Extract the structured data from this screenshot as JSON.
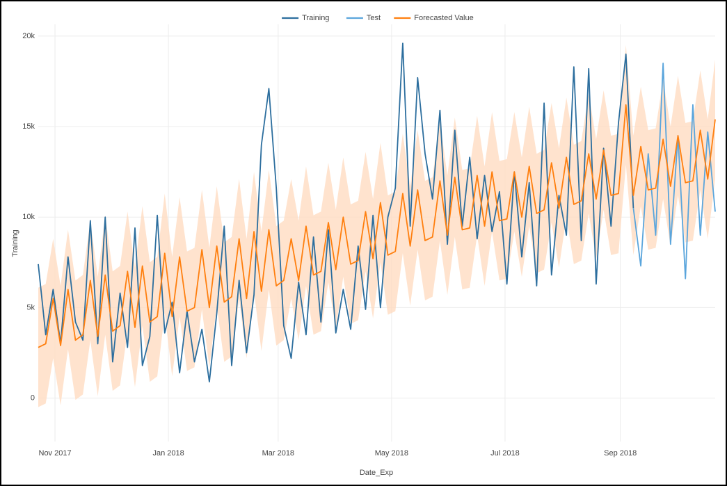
{
  "chart_data": {
    "type": "line",
    "x_label": "Date_Exp",
    "y_label": "Training",
    "x": [
      "2017-10-23",
      "2017-10-27",
      "2017-10-31",
      "2017-11-04",
      "2017-11-08",
      "2017-11-12",
      "2017-11-16",
      "2017-11-20",
      "2017-11-24",
      "2017-11-28",
      "2017-12-02",
      "2017-12-06",
      "2017-12-10",
      "2017-12-14",
      "2017-12-18",
      "2017-12-22",
      "2017-12-26",
      "2017-12-30",
      "2018-01-03",
      "2018-01-07",
      "2018-01-11",
      "2018-01-15",
      "2018-01-19",
      "2018-01-23",
      "2018-01-27",
      "2018-01-31",
      "2018-02-04",
      "2018-02-08",
      "2018-02-12",
      "2018-02-16",
      "2018-02-20",
      "2018-02-24",
      "2018-02-28",
      "2018-03-04",
      "2018-03-08",
      "2018-03-12",
      "2018-03-16",
      "2018-03-20",
      "2018-03-24",
      "2018-03-28",
      "2018-04-01",
      "2018-04-05",
      "2018-04-09",
      "2018-04-13",
      "2018-04-17",
      "2018-04-21",
      "2018-04-25",
      "2018-04-29",
      "2018-05-03",
      "2018-05-07",
      "2018-05-11",
      "2018-05-15",
      "2018-05-19",
      "2018-05-23",
      "2018-05-27",
      "2018-05-31",
      "2018-06-04",
      "2018-06-08",
      "2018-06-12",
      "2018-06-16",
      "2018-06-20",
      "2018-06-24",
      "2018-06-28",
      "2018-07-02",
      "2018-07-06",
      "2018-07-10",
      "2018-07-14",
      "2018-07-18",
      "2018-07-22",
      "2018-07-26",
      "2018-07-30",
      "2018-08-03",
      "2018-08-07",
      "2018-08-11",
      "2018-08-15",
      "2018-08-19",
      "2018-08-23",
      "2018-08-27",
      "2018-08-31",
      "2018-09-04",
      "2018-09-08",
      "2018-09-12",
      "2018-09-16",
      "2018-09-20",
      "2018-09-24",
      "2018-09-28",
      "2018-10-02",
      "2018-10-06",
      "2018-10-10",
      "2018-10-14",
      "2018-10-18",
      "2018-10-22"
    ],
    "series": [
      {
        "name": "Training",
        "color": "#2c6e9e",
        "values": [
          7400,
          3500,
          6000,
          3000,
          7800,
          4200,
          3200,
          9800,
          3000,
          10000,
          2000,
          5800,
          2800,
          9400,
          1800,
          3400,
          10100,
          3600,
          5300,
          1400,
          4800,
          2000,
          3800,
          900,
          4700,
          9500,
          1800,
          6500,
          2500,
          5700,
          14000,
          17100,
          11600,
          4000,
          2200,
          6400,
          3500,
          8900,
          4200,
          9300,
          3600,
          6000,
          3800,
          8400,
          4900,
          10100,
          5000,
          10000,
          11600,
          19600,
          9500,
          17700,
          13500,
          11000,
          15900,
          8500,
          14800,
          9500,
          13300,
          8800,
          12300,
          9200,
          11400,
          6300,
          12500,
          7800,
          11900,
          6200,
          16300,
          6800,
          11200,
          9000,
          18300,
          8700,
          18200,
          6300,
          13800,
          9500,
          15200,
          19000,
          10500,
          null,
          null,
          null,
          null,
          null,
          null,
          null,
          null,
          null,
          null,
          null
        ]
      },
      {
        "name": "Test",
        "color": "#5aa5dc",
        "values": [
          null,
          null,
          null,
          null,
          null,
          null,
          null,
          null,
          null,
          null,
          null,
          null,
          null,
          null,
          null,
          null,
          null,
          null,
          null,
          null,
          null,
          null,
          null,
          null,
          null,
          null,
          null,
          null,
          null,
          null,
          null,
          null,
          null,
          null,
          null,
          null,
          null,
          null,
          null,
          null,
          null,
          null,
          null,
          null,
          null,
          null,
          null,
          null,
          null,
          null,
          null,
          null,
          null,
          null,
          null,
          null,
          null,
          null,
          null,
          null,
          null,
          null,
          null,
          null,
          null,
          null,
          null,
          null,
          null,
          null,
          null,
          null,
          null,
          null,
          null,
          null,
          null,
          null,
          null,
          null,
          10500,
          7300,
          13500,
          9000,
          18500,
          8500,
          14500,
          6600,
          16200,
          9000,
          14700,
          10300
        ]
      },
      {
        "name": "Forecasted Value",
        "color": "#ff7f0e",
        "band_color": "#ffdcc2",
        "values": [
          2800,
          3000,
          5500,
          2900,
          6000,
          3200,
          3500,
          6500,
          3400,
          6800,
          3700,
          4000,
          7000,
          3900,
          7300,
          4200,
          4500,
          8000,
          4500,
          7800,
          4800,
          5000,
          8200,
          5000,
          8400,
          5300,
          5600,
          8800,
          5500,
          9200,
          5900,
          9300,
          6200,
          6500,
          8800,
          6500,
          9500,
          6800,
          7000,
          9700,
          7100,
          10000,
          7400,
          7600,
          10300,
          7700,
          10800,
          7900,
          8100,
          11300,
          8400,
          11500,
          8700,
          8900,
          12000,
          9000,
          12200,
          9300,
          9400,
          12300,
          9500,
          12500,
          9800,
          9900,
          12500,
          10000,
          12800,
          10200,
          10400,
          13000,
          10500,
          13300,
          10700,
          10900,
          13500,
          11000,
          13700,
          11200,
          11300,
          16200,
          11200,
          13900,
          11500,
          11600,
          14300,
          11700,
          14500,
          11900,
          12000,
          14800,
          12100,
          15400
        ],
        "lower": [
          -500,
          -300,
          2200,
          -400,
          2700,
          -100,
          200,
          3200,
          100,
          3500,
          400,
          700,
          3700,
          600,
          4000,
          900,
          1200,
          4700,
          1200,
          4500,
          1500,
          1700,
          4900,
          1700,
          5100,
          2000,
          2300,
          5500,
          2200,
          5900,
          2600,
          6000,
          2900,
          3200,
          5500,
          3200,
          6200,
          3500,
          3700,
          6400,
          3800,
          6700,
          4100,
          4300,
          7000,
          4400,
          7500,
          4600,
          4800,
          8000,
          5100,
          8200,
          5400,
          5600,
          8700,
          5700,
          8900,
          6000,
          6100,
          9000,
          6200,
          9200,
          6500,
          6600,
          9200,
          6700,
          9500,
          6900,
          7100,
          9700,
          7200,
          10000,
          7400,
          7600,
          10200,
          7700,
          10400,
          7900,
          8000,
          12900,
          7900,
          10600,
          8200,
          8300,
          11000,
          8400,
          11200,
          8600,
          8700,
          11500,
          8800,
          12100
        ],
        "upper": [
          6100,
          6300,
          8800,
          6200,
          9300,
          6500,
          6800,
          9800,
          6700,
          10100,
          7000,
          7300,
          10300,
          7200,
          10600,
          7500,
          7800,
          11300,
          7800,
          11100,
          8100,
          8300,
          11500,
          8300,
          11700,
          8600,
          8900,
          12100,
          8800,
          12500,
          9200,
          12600,
          9500,
          9800,
          12100,
          9800,
          12800,
          10100,
          10300,
          13000,
          10400,
          13300,
          10700,
          10900,
          13600,
          11000,
          14100,
          11200,
          11400,
          14600,
          11700,
          14800,
          12000,
          12200,
          15300,
          12300,
          15500,
          12600,
          12700,
          15600,
          12800,
          15800,
          13100,
          13200,
          15800,
          13300,
          16100,
          13500,
          13700,
          16300,
          13800,
          16600,
          14000,
          14200,
          16800,
          14300,
          17000,
          14500,
          14600,
          19500,
          14500,
          17200,
          14800,
          14900,
          17600,
          15000,
          17800,
          15200,
          15300,
          18100,
          15400,
          18700
        ]
      }
    ],
    "xlim": [
      "2017-10-23",
      "2018-10-22"
    ],
    "xticks": [
      {
        "value": "2017-11-01",
        "label": "Nov 2017"
      },
      {
        "value": "2018-01-01",
        "label": "Jan 2018"
      },
      {
        "value": "2018-03-01",
        "label": "Mar 2018"
      },
      {
        "value": "2018-05-01",
        "label": "May 2018"
      },
      {
        "value": "2018-07-01",
        "label": "Jul 2018"
      },
      {
        "value": "2018-09-01",
        "label": "Sep 2018"
      }
    ],
    "ylim": [
      -2400,
      20650
    ],
    "yticks": [
      0,
      {
        "value": 5000,
        "label": "5k"
      },
      {
        "value": 10000,
        "label": "10k"
      },
      {
        "value": 15000,
        "label": "15k"
      },
      {
        "value": 20000,
        "label": "20k"
      }
    ],
    "grid": true,
    "legend": "top"
  }
}
